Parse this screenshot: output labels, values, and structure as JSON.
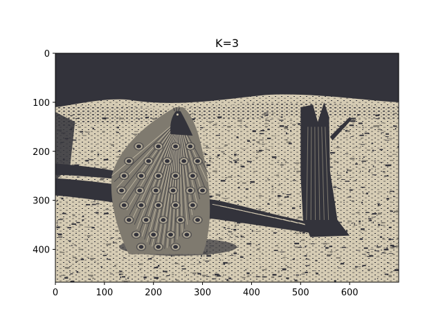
{
  "chart_data": {
    "type": "image",
    "title": "K=3",
    "image_width": 700,
    "image_height": 467,
    "x_ticks": [
      0,
      100,
      200,
      300,
      400,
      500,
      600
    ],
    "y_ticks": [
      0,
      100,
      200,
      300,
      400
    ],
    "palette": [
      "#33333b",
      "#7f7a6f",
      "#d6ccb4"
    ],
    "subject": "quantized photo of a peacock with its tail feathers on a forest floor beside a fallen tree stump"
  }
}
